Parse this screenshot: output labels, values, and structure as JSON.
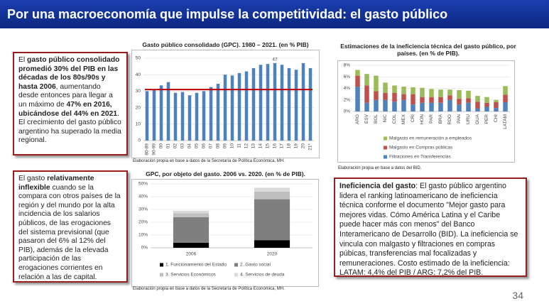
{
  "header": {
    "title": "Por una macroeconomía que impulse la competitividad: el gasto público"
  },
  "text_boxes": [
    {
      "segments": [
        {
          "text": "El ",
          "bold": false
        },
        {
          "text": "gasto público consolidado promedió 30% del PIB en las décadas de los 80s/90s y hasta 2006",
          "bold": true
        },
        {
          "text": ", aumentando desde entonces para llegar a un máximo de ",
          "bold": false
        },
        {
          "text": "47% en 2016, ubicándose del 44% en 2021",
          "bold": true
        },
        {
          "text": ". El crecimiento del gasto público argentino ha superado la media regional.",
          "bold": false
        }
      ]
    },
    {
      "segments": [
        {
          "text": "El gasto ",
          "bold": false
        },
        {
          "text": "relativamente inflexible",
          "bold": true
        },
        {
          "text": " cuando se la compara con otros países de la región y del mundo por la alta incidencia de los salarios públicos, de las erogaciones del sistema previsional (que pasaron del 6% al 12% del PIB), además de la elevada participación de las erogaciones corrientes en relación a las de capital.",
          "bold": false
        }
      ]
    },
    {
      "segments": [
        {
          "text": "Ineficiencia del gasto",
          "bold": true
        },
        {
          "text": ": El gasto público argentino lidera el ranking latinoamericano de ineficiencia técnica conforme el documento \"Mejor gasto para mejores vidas. Cómo América Latina y el Caribe puede hacer más con menos\" del Banco Interamericano de Desarrollo (BID). La ineficiencia se vincula con malgasto y filtraciones en compras púbicas, transferencias mal focalizadas y remuneraciones. Costo estimado de la ineficiencia: LATAM: 4,4% del PIB / ARG: 7,2% del PIB.",
          "bold": false
        }
      ]
    }
  ],
  "page_number": "34",
  "chart_data": [
    {
      "type": "bar",
      "title": "Gasto público consolidado (GPC). 1980 – 2021. (en % PIB)",
      "source": "Elaboración propia en base a datos de la Secretaría de Política Económica, MH.",
      "categories": [
        "80-89",
        "90-99",
        "00",
        "01",
        "02",
        "03",
        "04",
        "05",
        "06",
        "07",
        "08",
        "09",
        "10",
        "11",
        "12",
        "13",
        "14",
        "15",
        "16",
        "17",
        "18",
        "19",
        "20",
        "21*"
      ],
      "values": [
        30,
        31,
        33.5,
        35.5,
        29,
        29.5,
        27.5,
        29,
        30,
        32.5,
        34.5,
        40,
        39.5,
        41,
        42,
        44,
        46,
        46.5,
        47,
        46,
        44,
        43,
        47,
        44
      ],
      "value_labels": [
        null,
        null,
        null,
        null,
        null,
        null,
        null,
        null,
        null,
        null,
        null,
        null,
        null,
        null,
        null,
        null,
        null,
        null,
        "47",
        null,
        null,
        null,
        null,
        null
      ],
      "color": "#4f81bd",
      "reference_line": {
        "value": 31,
        "color": "#c00000"
      },
      "ylim": [
        0,
        50
      ],
      "yticks": [
        0,
        10,
        20,
        30,
        40,
        50
      ],
      "grid": true
    },
    {
      "type": "stacked-bar",
      "title": "Estimaciones de la ineficiencia técnica del gasto público, por países. (en % de PIB).",
      "source": "Elaboración propia en base a datos del BID.",
      "categories": [
        "ARG",
        "ESV",
        "BOL",
        "NIC",
        "COL",
        "MEX",
        "CRI",
        "HON",
        "PAR",
        "BRA",
        "RDO",
        "PAN",
        "URU",
        "GUA",
        "PER",
        "CHI",
        "LATAM"
      ],
      "series": [
        {
          "name": "Filtraciones en Transferencias",
          "color": "#4f81bd",
          "values": [
            4.3,
            1.5,
            2.0,
            2.0,
            1.7,
            2.0,
            1.2,
            1.5,
            1.5,
            1.5,
            2.0,
            1.2,
            1.5,
            0.5,
            0.8,
            0.6,
            1.6
          ]
        },
        {
          "name": "Malgasto en Compras públicas",
          "color": "#c0504d",
          "values": [
            1.9,
            3.0,
            1.5,
            1.2,
            1.5,
            1.0,
            1.8,
            1.0,
            1.0,
            1.0,
            0.8,
            1.0,
            0.8,
            1.2,
            0.7,
            1.0,
            1.3
          ]
        },
        {
          "name": "Malgasto en remuneración a empleados",
          "color": "#9bbb59",
          "values": [
            1.0,
            2.0,
            2.7,
            1.8,
            1.3,
            1.3,
            1.2,
            1.6,
            1.4,
            1.3,
            1.0,
            1.5,
            1.3,
            1.0,
            1.0,
            0.4,
            1.5
          ]
        }
      ],
      "ylim": [
        0,
        8
      ],
      "yticks": [
        {
          "value": 0,
          "label": "0%"
        },
        {
          "value": 2,
          "label": "2%"
        },
        {
          "value": 4,
          "label": "4%"
        },
        {
          "value": 6,
          "label": "6%"
        },
        {
          "value": 8,
          "label": "8%"
        }
      ],
      "grid": true
    },
    {
      "type": "stacked-bar",
      "title": "GPC, por objeto del gasto. 2006 vs. 2020. (en % de PIB).",
      "source": "Elaboración propia en base a datos de la Secretaría de Política Económica, MH.",
      "categories": [
        "2006",
        "2020"
      ],
      "series": [
        {
          "name": "1. Funcionamiento del Estado",
          "color": "#000000",
          "values": [
            4,
            6
          ]
        },
        {
          "name": "2. Gasto social",
          "color": "#7f7f7f",
          "values": [
            20,
            32
          ]
        },
        {
          "name": "3. Servicios Económicos",
          "color": "#bfbfbf",
          "values": [
            3,
            6
          ]
        },
        {
          "name": "4. Servicios de deuda",
          "color": "#d9d9d9",
          "values": [
            2,
            3
          ]
        }
      ],
      "ylim": [
        0,
        50
      ],
      "yticks": [
        {
          "value": 0,
          "label": "0%"
        },
        {
          "value": 10,
          "label": "10%"
        },
        {
          "value": 20,
          "label": "20%"
        },
        {
          "value": 30,
          "label": "30%"
        },
        {
          "value": 40,
          "label": "40%"
        },
        {
          "value": 50,
          "label": "50%"
        }
      ],
      "grid": true
    }
  ]
}
